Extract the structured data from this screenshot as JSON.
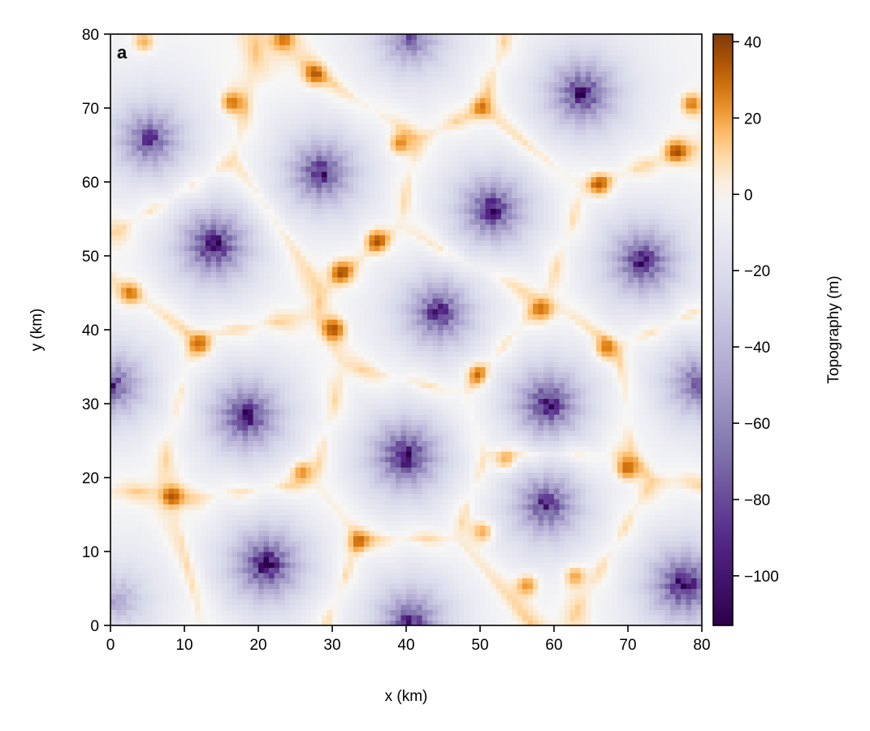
{
  "chart_data": {
    "type": "heatmap",
    "panel_label": "a",
    "xlabel": "x (km)",
    "ylabel": "y (km)",
    "xlim": [
      0,
      80
    ],
    "ylim": [
      0,
      80
    ],
    "x_ticks": [
      0,
      10,
      20,
      30,
      40,
      50,
      60,
      70,
      80
    ],
    "y_ticks": [
      0,
      10,
      20,
      30,
      40,
      50,
      60,
      70,
      80
    ],
    "colorbar": {
      "label": "Topography (m)",
      "range": [
        -113,
        42
      ],
      "ticks": [
        40,
        20,
        0,
        -20,
        -40,
        -60,
        -80,
        -100
      ],
      "tick_labels": [
        "40",
        "20",
        "0",
        "−20",
        "−40",
        "−60",
        "−80",
        "−100"
      ],
      "colormap": "PuOr_r",
      "stops": [
        "#2d004b",
        "#542788",
        "#8073ac",
        "#b2abd2",
        "#d8daeb",
        "#f7f7f7",
        "#fee0b6",
        "#fdb863",
        "#e08214",
        "#b35806",
        "#7f3b08"
      ]
    },
    "basins": [
      {
        "x": 40.6,
        "y": 79.5,
        "depth": -70
      },
      {
        "x": 63.8,
        "y": 72.0,
        "depth": -100
      },
      {
        "x": 5.3,
        "y": 65.8,
        "depth": -85
      },
      {
        "x": 28.5,
        "y": 61.3,
        "depth": -95
      },
      {
        "x": 51.6,
        "y": 56.3,
        "depth": -100
      },
      {
        "x": 14.0,
        "y": 51.5,
        "depth": -110
      },
      {
        "x": 72.0,
        "y": 49.3,
        "depth": -100
      },
      {
        "x": 44.4,
        "y": 42.4,
        "depth": -95
      },
      {
        "x": 0.3,
        "y": 32.6,
        "depth": -80
      },
      {
        "x": 59.2,
        "y": 30.0,
        "depth": -105
      },
      {
        "x": 79.7,
        "y": 32.8,
        "depth": -80
      },
      {
        "x": 18.4,
        "y": 28.4,
        "depth": -105
      },
      {
        "x": 39.9,
        "y": 23.0,
        "depth": -110
      },
      {
        "x": 59.0,
        "y": 16.4,
        "depth": -95
      },
      {
        "x": 21.1,
        "y": 8.3,
        "depth": -110
      },
      {
        "x": 77.6,
        "y": 5.6,
        "depth": -110
      },
      {
        "x": 40.6,
        "y": 0.6,
        "depth": -90
      },
      {
        "x": 1.0,
        "y": 3.5,
        "depth": -40
      }
    ],
    "peaks": [
      {
        "x": 16.3,
        "y": 70.8,
        "height": 32
      },
      {
        "x": 27.5,
        "y": 74.5,
        "height": 30
      },
      {
        "x": 39.1,
        "y": 65.2,
        "height": 32
      },
      {
        "x": 50.1,
        "y": 70.1,
        "height": 28
      },
      {
        "x": 66.1,
        "y": 59.6,
        "height": 30
      },
      {
        "x": 76.4,
        "y": 64.2,
        "height": 32
      },
      {
        "x": 78.6,
        "y": 70.6,
        "height": 34
      },
      {
        "x": 35.9,
        "y": 52.1,
        "height": 34
      },
      {
        "x": 31.1,
        "y": 47.8,
        "height": 34
      },
      {
        "x": 30.3,
        "y": 40.2,
        "height": 36
      },
      {
        "x": 2.7,
        "y": 45.0,
        "height": 30
      },
      {
        "x": 12.3,
        "y": 38.1,
        "height": 30
      },
      {
        "x": 58.5,
        "y": 42.8,
        "height": 28
      },
      {
        "x": 66.9,
        "y": 37.4,
        "height": 30
      },
      {
        "x": 49.7,
        "y": 34.2,
        "height": 30
      },
      {
        "x": 53.5,
        "y": 22.4,
        "height": 28
      },
      {
        "x": 69.8,
        "y": 21.2,
        "height": 34
      },
      {
        "x": 8.3,
        "y": 17.6,
        "height": 36
      },
      {
        "x": 25.9,
        "y": 20.9,
        "height": 32
      },
      {
        "x": 33.5,
        "y": 11.4,
        "height": 32
      },
      {
        "x": 50.5,
        "y": 12.8,
        "height": 30
      },
      {
        "x": 56.4,
        "y": 5.6,
        "height": 32
      },
      {
        "x": 62.8,
        "y": 6.8,
        "height": 30
      },
      {
        "x": 23.4,
        "y": 79.4,
        "height": 28
      },
      {
        "x": 4.5,
        "y": 79.0,
        "height": 26
      }
    ]
  }
}
